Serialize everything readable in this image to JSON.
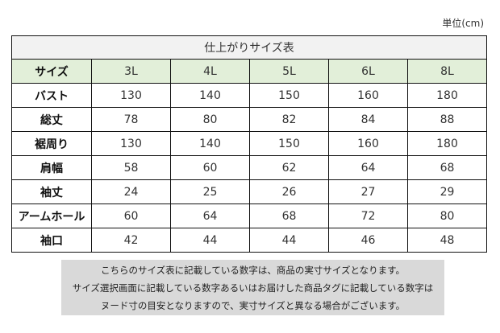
{
  "unit_label": "単位(cm)",
  "table": {
    "title": "仕上がりサイズ表",
    "header": [
      "サイズ",
      "3L",
      "4L",
      "5L",
      "6L",
      "8L"
    ],
    "rows": [
      {
        "label": "バスト",
        "values": [
          "130",
          "140",
          "150",
          "160",
          "180"
        ]
      },
      {
        "label": "総丈",
        "values": [
          "78",
          "80",
          "82",
          "84",
          "88"
        ]
      },
      {
        "label": "裾周り",
        "values": [
          "130",
          "140",
          "150",
          "160",
          "180"
        ]
      },
      {
        "label": "肩幅",
        "values": [
          "58",
          "60",
          "62",
          "64",
          "68"
        ]
      },
      {
        "label": "袖丈",
        "values": [
          "24",
          "25",
          "26",
          "27",
          "29"
        ]
      },
      {
        "label": "アームホール",
        "values": [
          "60",
          "64",
          "68",
          "72",
          "80"
        ]
      },
      {
        "label": "袖口",
        "values": [
          "42",
          "44",
          "44",
          "46",
          "48"
        ]
      }
    ]
  },
  "note": {
    "lines": [
      "こちらのサイズ表に記載している数字は、商品の実寸サイズとなります。",
      "サイズ選択画面に記載している数字あるいはお届けした商品タグに記載している数字は",
      "ヌード寸の目安となりますので、実寸サイズと異なる場合がございます。"
    ]
  },
  "colors": {
    "title_bg": "#f2f2f2",
    "header_bg": "#e2efd9",
    "note_bg": "#d9d9d9",
    "border": "#111111"
  }
}
